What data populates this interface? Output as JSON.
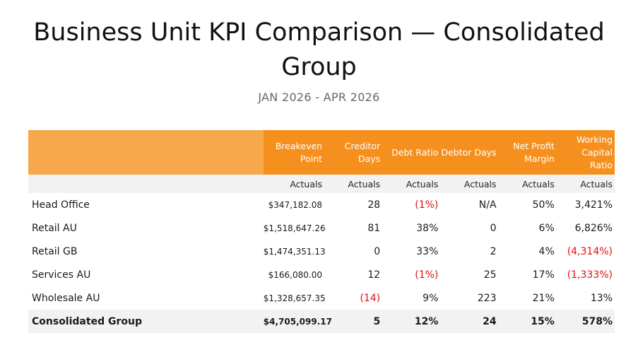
{
  "title": "Business Unit KPI Comparison — Consolidated Group",
  "subtitle": "JAN 2026 - APR 2026",
  "table": {
    "columns": [
      {
        "label": "Breakeven Point",
        "lines": [
          "Breakeven",
          "Point"
        ]
      },
      {
        "label": "Creditor Days",
        "lines": [
          "Creditor",
          "Days"
        ]
      },
      {
        "label": "Debt Ratio",
        "lines": [
          "Debt Ratio"
        ]
      },
      {
        "label": "Debtor Days",
        "lines": [
          "Debtor Days"
        ]
      },
      {
        "label": "Net Profit Margin",
        "lines": [
          "Net Profit",
          "Margin"
        ]
      },
      {
        "label": "Working Capital Ratio",
        "lines": [
          "Working",
          "Capital Ratio"
        ]
      }
    ],
    "subheader": [
      "Actuals",
      "Actuals",
      "Actuals",
      "Actuals",
      "Actuals",
      "Actuals"
    ],
    "rows": [
      {
        "name": "Head Office",
        "values": [
          "$347,182.08",
          "28",
          "(1%)",
          "N/A",
          "50%",
          "3,421%"
        ]
      },
      {
        "name": "Retail AU",
        "values": [
          "$1,518,647.26",
          "81",
          "38%",
          "0",
          "6%",
          "6,826%"
        ]
      },
      {
        "name": "Retail GB",
        "values": [
          "$1,474,351.13",
          "0",
          "33%",
          "2",
          "4%",
          "(4,314%)"
        ]
      },
      {
        "name": "Services AU",
        "values": [
          "$166,080.00",
          "12",
          "(1%)",
          "25",
          "17%",
          "(1,333%)"
        ]
      },
      {
        "name": "Wholesale AU",
        "values": [
          "$1,328,657.35",
          "(14)",
          "9%",
          "223",
          "21%",
          "13%"
        ]
      }
    ],
    "total": {
      "name": "Consolidated Group",
      "values": [
        "$4,705,099.17",
        "5",
        "12%",
        "24",
        "15%",
        "578%"
      ]
    }
  },
  "colors": {
    "header_orange": "#f5901e",
    "header_orange_light": "#f7a84a",
    "negative_red": "#e01010",
    "row_gray": "#f2f2f2"
  }
}
